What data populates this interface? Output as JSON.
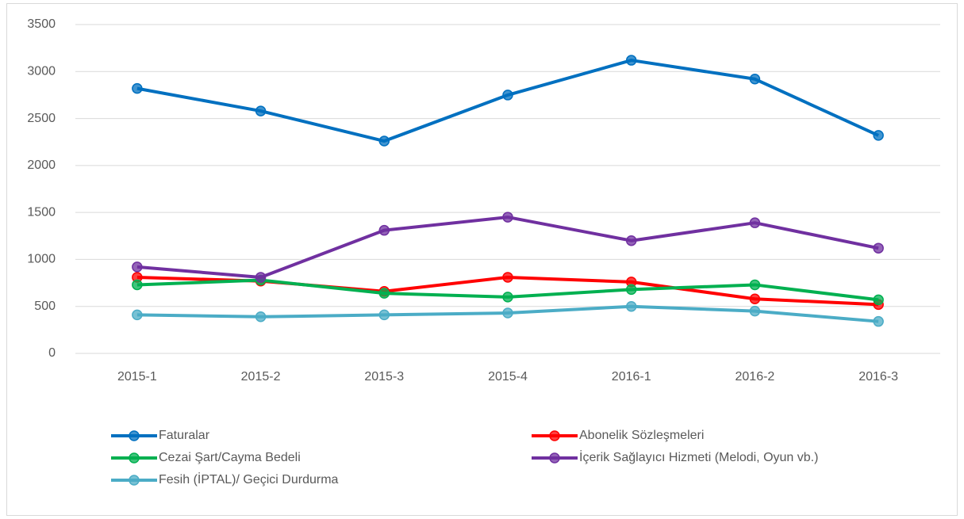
{
  "chart_data": {
    "type": "line",
    "categories": [
      "2015-1",
      "2015-2",
      "2015-3",
      "2015-4",
      "2016-1",
      "2016-2",
      "2016-3"
    ],
    "series": [
      {
        "name": "Faturalar",
        "color": "#0070c0",
        "values": [
          2820,
          2580,
          2260,
          2750,
          3120,
          2920,
          2320
        ]
      },
      {
        "name": "Abonelik Sözleşmeleri",
        "color": "#ff0000",
        "values": [
          810,
          770,
          660,
          810,
          760,
          580,
          520
        ]
      },
      {
        "name": "Cezai Şart/Cayma Bedeli",
        "color": "#00b050",
        "values": [
          730,
          780,
          640,
          600,
          680,
          730,
          570
        ]
      },
      {
        "name": "İçerik Sağlayıcı Hizmeti (Melodi, Oyun vb.)",
        "color": "#7030a0",
        "values": [
          920,
          810,
          1310,
          1450,
          1200,
          1390,
          1120
        ]
      },
      {
        "name": "Fesih (İPTAL)/ Geçici Durdurma",
        "color": "#4bacc6",
        "values": [
          410,
          390,
          410,
          430,
          500,
          450,
          340
        ]
      }
    ],
    "ylim": [
      0,
      3500
    ],
    "yticks": [
      0,
      500,
      1000,
      1500,
      2000,
      2500,
      3000,
      3500
    ],
    "grid": true,
    "legend": "bottom"
  }
}
